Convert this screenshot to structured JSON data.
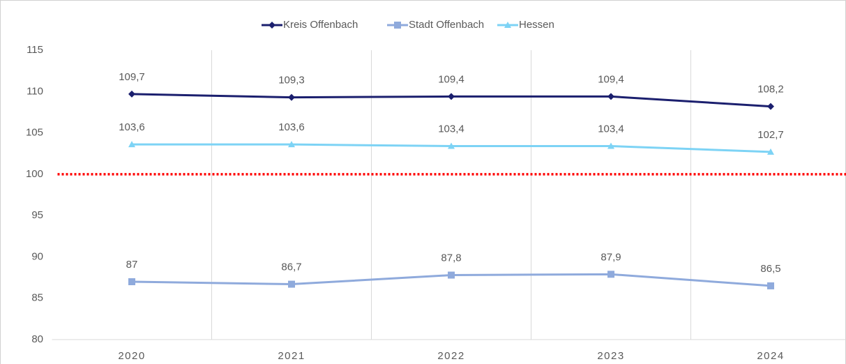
{
  "chart_data": {
    "type": "line",
    "categories": [
      "2020",
      "2021",
      "2022",
      "2023",
      "2024"
    ],
    "series": [
      {
        "name": "Kreis Offenbach",
        "color": "#1b1f6e",
        "marker": "diamond",
        "values": [
          109.7,
          109.3,
          109.4,
          109.4,
          108.2
        ],
        "value_labels": [
          "109,7",
          "109,3",
          "109,4",
          "109,4",
          "108,2"
        ]
      },
      {
        "name": "Stadt Offenbach",
        "color": "#8faadc",
        "marker": "square",
        "values": [
          87,
          86.7,
          87.8,
          87.9,
          86.5
        ],
        "value_labels": [
          "87",
          "86,7",
          "87,8",
          "87,9",
          "86,5"
        ]
      },
      {
        "name": "Hessen",
        "color": "#7dd3f5",
        "marker": "triangle",
        "values": [
          103.6,
          103.6,
          103.4,
          103.4,
          102.7
        ],
        "value_labels": [
          "103,6",
          "103,6",
          "103,4",
          "103,4",
          "102,7"
        ]
      }
    ],
    "ylim": [
      80,
      115
    ],
    "yticks": [
      80,
      85,
      90,
      95,
      100,
      105,
      110,
      115
    ],
    "reference_line": {
      "value": 100,
      "color": "#ff0000"
    },
    "grid": "vertical",
    "legend": "top"
  }
}
